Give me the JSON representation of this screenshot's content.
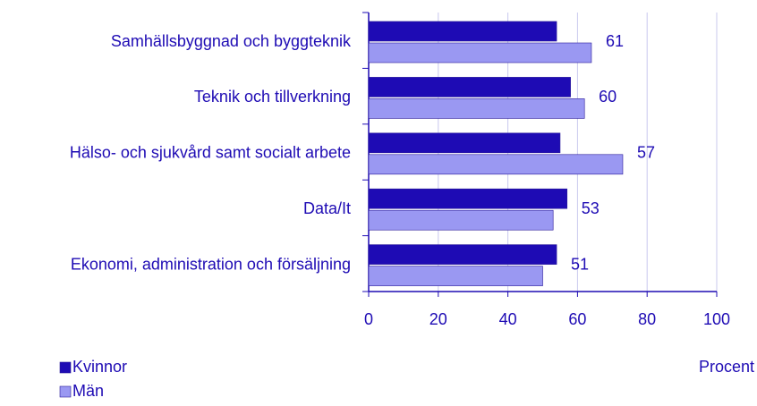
{
  "chart_data": {
    "type": "bar",
    "orientation": "horizontal",
    "categories": [
      "Samhällsbyggnad och byggteknik",
      "Teknik och tillverkning",
      "Hälso- och sjukvård samt socialt arbete",
      "Data/It",
      "Ekonomi, administration och försäljning"
    ],
    "series": [
      {
        "name": "Kvinnor",
        "color": "#1e0bb4",
        "values": [
          54,
          58,
          55,
          57,
          54
        ]
      },
      {
        "name": "Män",
        "color": "#9a98f2",
        "values": [
          64,
          62,
          73,
          53,
          50
        ]
      }
    ],
    "annotations": [
      "61",
      "60",
      "57",
      "53",
      "51"
    ],
    "xlabel": "Procent",
    "xlim": [
      0,
      100
    ],
    "xticks": [
      0,
      20,
      40,
      60,
      80,
      100
    ],
    "grid": true
  }
}
